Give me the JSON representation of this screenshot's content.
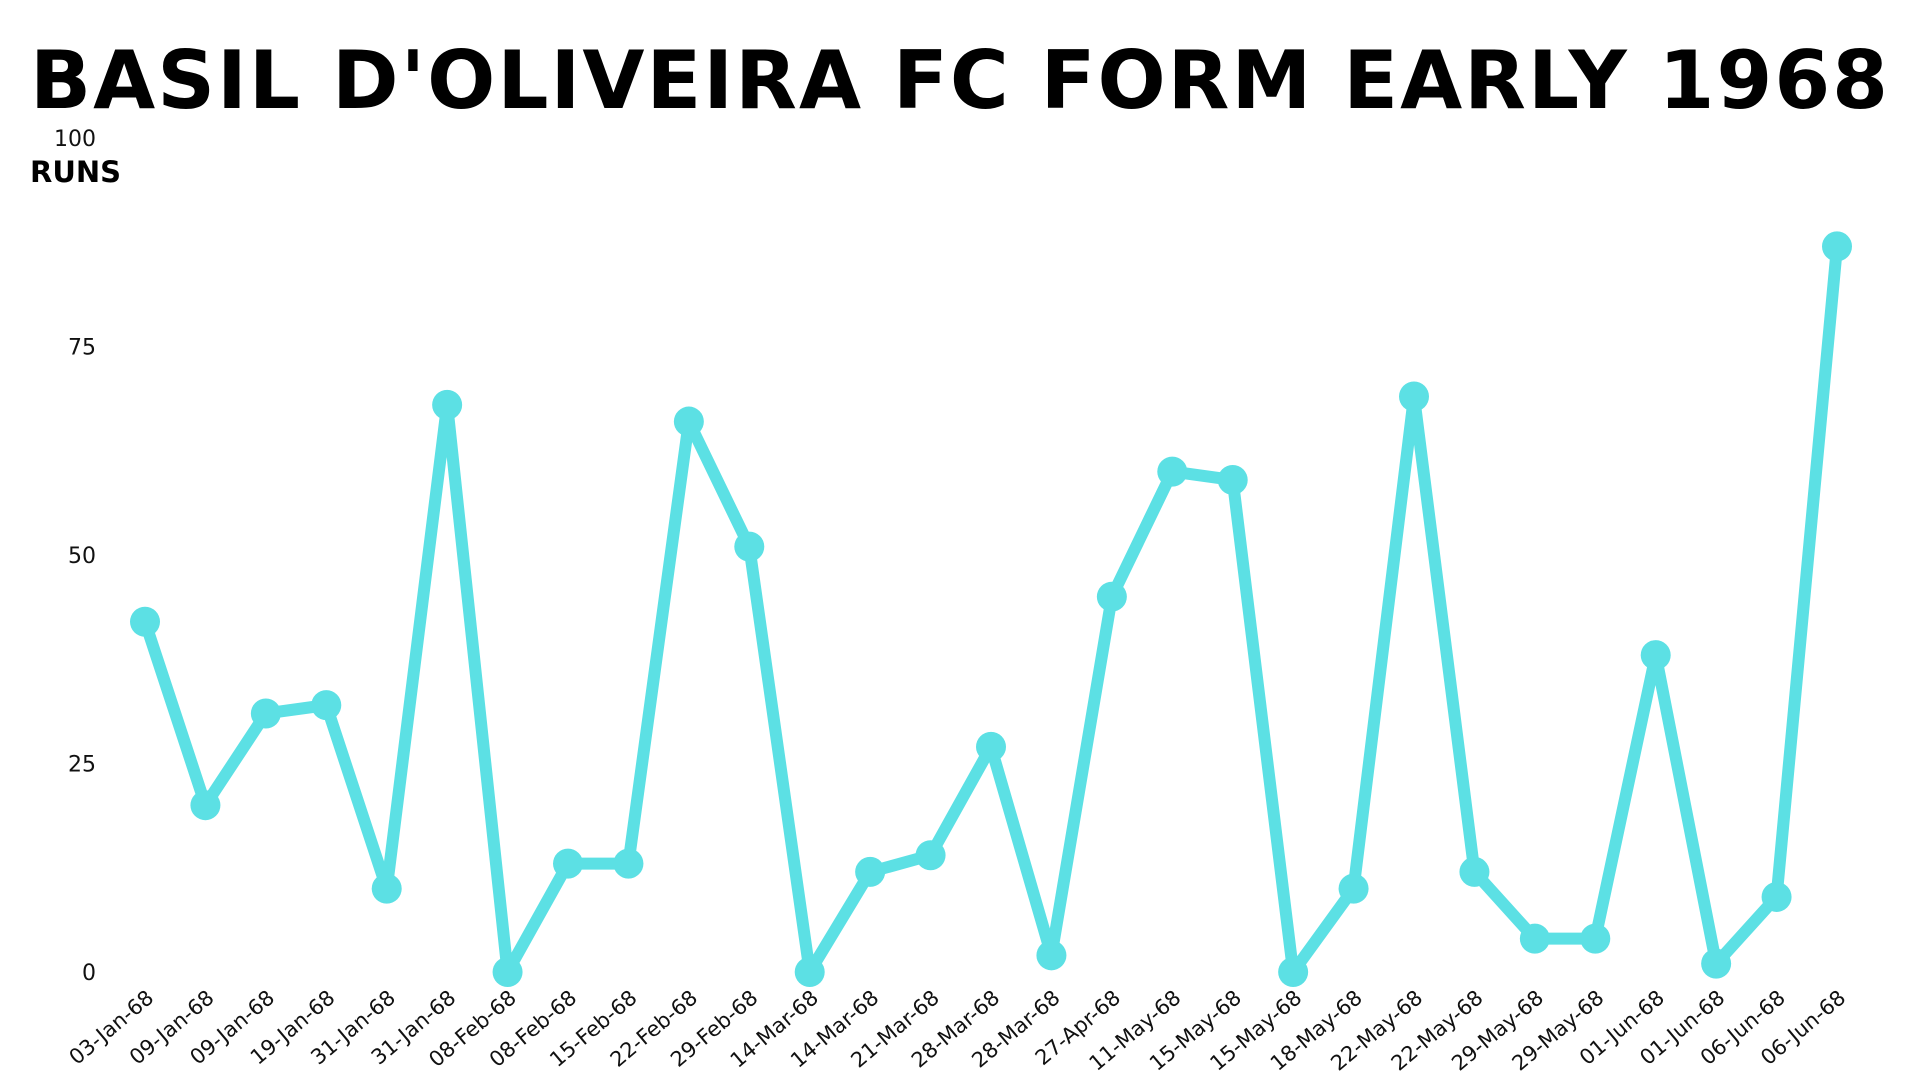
{
  "chart_data": {
    "type": "line",
    "title": "BASIL D'OLIVEIRA FC FORM EARLY 1968",
    "ylabel": "RUNS",
    "xlabel": "",
    "ylim": [
      0,
      100
    ],
    "yticks": [
      0,
      25,
      50,
      75,
      100
    ],
    "grid": false,
    "legend": "none",
    "line_color": "#5ce0e4",
    "categories": [
      "03-Jan-68",
      "09-Jan-68",
      "09-Jan-68",
      "19-Jan-68",
      "31-Jan-68",
      "31-Jan-68",
      "08-Feb-68",
      "08-Feb-68",
      "15-Feb-68",
      "22-Feb-68",
      "29-Feb-68",
      "14-Mar-68",
      "14-Mar-68",
      "21-Mar-68",
      "28-Mar-68",
      "28-Mar-68",
      "27-Apr-68",
      "11-May-68",
      "15-May-68",
      "15-May-68",
      "18-May-68",
      "22-May-68",
      "22-May-68",
      "29-May-68",
      "29-May-68",
      "01-Jun-68",
      "01-Jun-68",
      "06-Jun-68",
      "06-Jun-68"
    ],
    "values": [
      42,
      20,
      31,
      32,
      10,
      68,
      0,
      13,
      13,
      66,
      51,
      0,
      12,
      14,
      27,
      2,
      45,
      60,
      59,
      0,
      10,
      69,
      12,
      4,
      4,
      38,
      1,
      9,
      87
    ]
  }
}
